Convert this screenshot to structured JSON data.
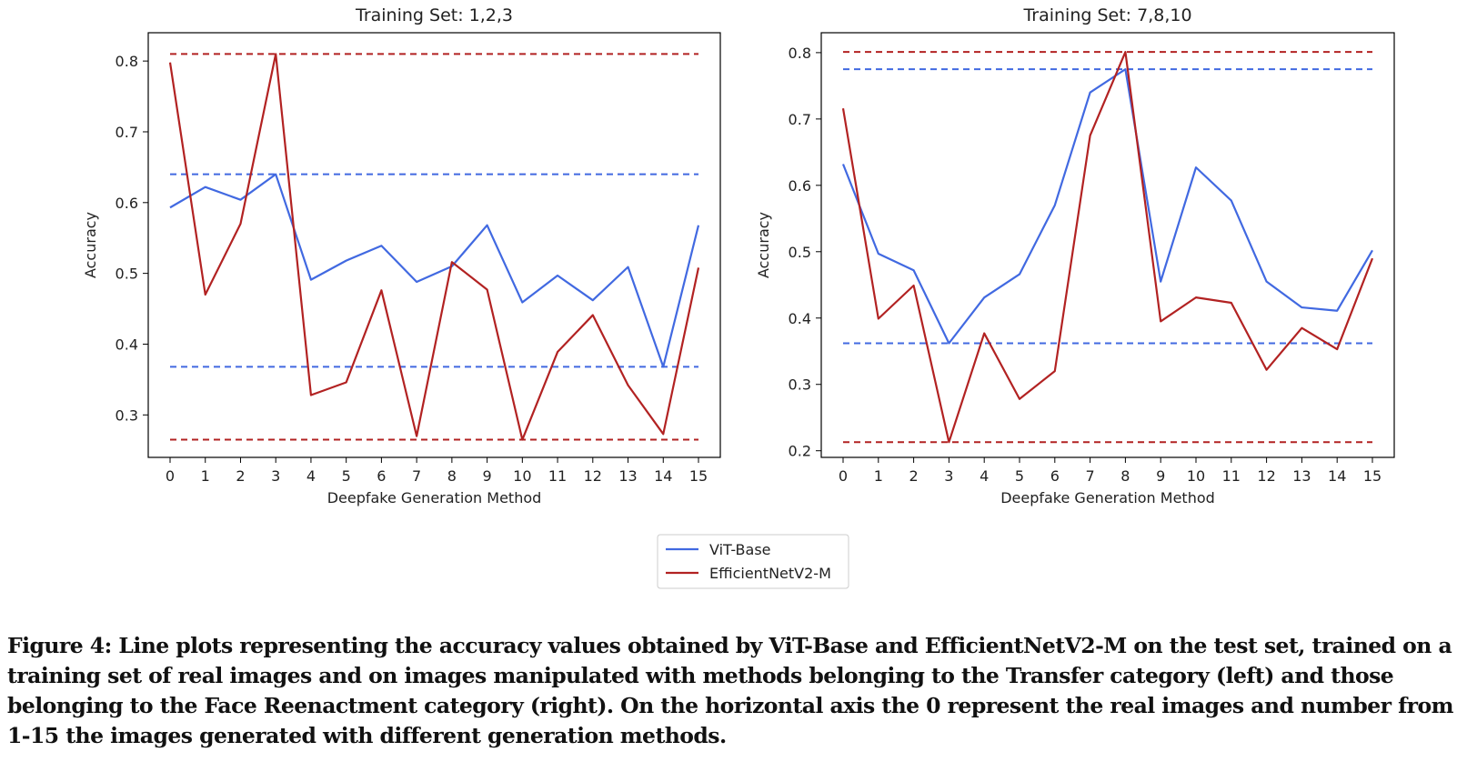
{
  "colors": {
    "vit": "#4169e1",
    "effnet": "#b22222"
  },
  "legend": {
    "vit_label": "ViT-Base",
    "effnet_label": "EfficientNetV2-M"
  },
  "chart_data": [
    {
      "type": "line",
      "title": "Training Set: 1,2,3",
      "xlabel": "Deepfake Generation Method",
      "ylabel": "Accuracy",
      "x": [
        0,
        1,
        2,
        3,
        4,
        5,
        6,
        7,
        8,
        9,
        10,
        11,
        12,
        13,
        14,
        15
      ],
      "xticks": [
        "0",
        "1",
        "2",
        "3",
        "4",
        "5",
        "6",
        "7",
        "8",
        "9",
        "10",
        "11",
        "12",
        "13",
        "14",
        "15"
      ],
      "ylim": [
        0.24,
        0.84
      ],
      "yticks": [
        0.3,
        0.4,
        0.5,
        0.6,
        0.7,
        0.8
      ],
      "ytick_labels": [
        "0.3",
        "0.4",
        "0.5",
        "0.6",
        "0.7",
        "0.8"
      ],
      "series": [
        {
          "name": "ViT-Base",
          "key": "vit",
          "values": [
            0.593,
            0.622,
            0.604,
            0.64,
            0.491,
            0.518,
            0.539,
            0.488,
            0.51,
            0.568,
            0.459,
            0.497,
            0.462,
            0.509,
            0.368,
            0.568
          ],
          "max": 0.64,
          "min": 0.368
        },
        {
          "name": "EfficientNetV2-M",
          "key": "effnet",
          "values": [
            0.798,
            0.47,
            0.57,
            0.81,
            0.328,
            0.346,
            0.476,
            0.27,
            0.516,
            0.477,
            0.265,
            0.389,
            0.441,
            0.342,
            0.273,
            0.508
          ],
          "max": 0.81,
          "min": 0.265
        }
      ]
    },
    {
      "type": "line",
      "title": "Training Set: 7,8,10",
      "xlabel": "Deepfake Generation Method",
      "ylabel": "Accuracy",
      "x": [
        0,
        1,
        2,
        3,
        4,
        5,
        6,
        7,
        8,
        9,
        10,
        11,
        12,
        13,
        14,
        15
      ],
      "xticks": [
        "0",
        "1",
        "2",
        "3",
        "4",
        "5",
        "6",
        "7",
        "8",
        "9",
        "10",
        "11",
        "12",
        "13",
        "14",
        "15"
      ],
      "ylim": [
        0.19,
        0.83
      ],
      "yticks": [
        0.2,
        0.3,
        0.4,
        0.5,
        0.6,
        0.7,
        0.8
      ],
      "ytick_labels": [
        "0.2",
        "0.3",
        "0.4",
        "0.5",
        "0.6",
        "0.7",
        "0.8"
      ],
      "series": [
        {
          "name": "ViT-Base",
          "key": "vit",
          "values": [
            0.632,
            0.497,
            0.472,
            0.362,
            0.431,
            0.466,
            0.57,
            0.74,
            0.775,
            0.455,
            0.627,
            0.577,
            0.455,
            0.416,
            0.411,
            0.502
          ],
          "max": 0.775,
          "min": 0.362
        },
        {
          "name": "EfficientNetV2-M",
          "key": "effnet",
          "values": [
            0.716,
            0.399,
            0.449,
            0.213,
            0.377,
            0.278,
            0.32,
            0.675,
            0.801,
            0.395,
            0.431,
            0.423,
            0.322,
            0.385,
            0.353,
            0.49
          ],
          "max": 0.801,
          "min": 0.213
        }
      ]
    }
  ],
  "caption": "Figure 4: Line plots representing the accuracy values obtained by ViT-Base and EfficientNetV2-M on the test set, trained on a training set of real images and on images manipulated with methods belonging to the Transfer category (left) and those belonging to the Face Reenactment category (right). On the horizontal axis the 0 represent the real images and number from 1-15 the images generated with different generation methods."
}
